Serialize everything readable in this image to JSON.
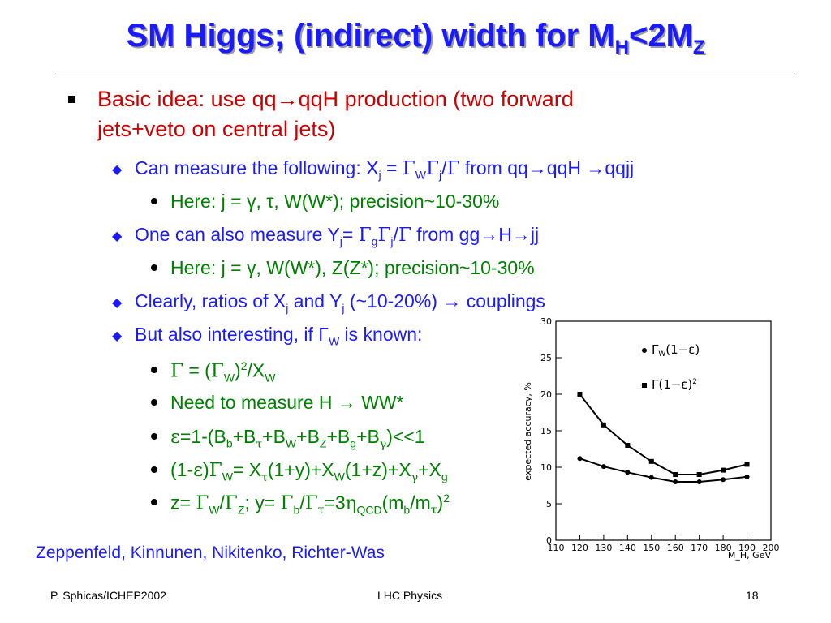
{
  "title": {
    "main": "SM Higgs; (indirect) width for M",
    "sub1": "H",
    "mid": "<2M",
    "sub2": "Z"
  },
  "bullet1": {
    "line1": "Basic idea: use qq→qqH production (two forward",
    "line2": "jets+veto on central jets)"
  },
  "items": [
    "Can measure the following: X",
    "Here: j = γ, τ, W(W*); precision~10-30%",
    "One can also measure Y",
    "Here: j = γ, W(W*), Z(Z*); precision~10-30%",
    "Clearly, ratios of X",
    "But also interesting, if Γ",
    "Need to measure H → WW*"
  ],
  "credit": "Zeppenfeld, Kinnunen, Nikitenko, Richter-Was",
  "footer": {
    "left": "P. Sphicas/ICHEP2002",
    "center": "LHC Physics",
    "right": "18"
  },
  "chart_data": {
    "type": "line",
    "ylabel": "expected accuracy, %",
    "xlabel": "M_H, GeV",
    "xlim": [
      110,
      200
    ],
    "ylim": [
      0,
      30
    ],
    "xticks": [
      110,
      120,
      130,
      140,
      150,
      160,
      170,
      180,
      190,
      200
    ],
    "yticks": [
      0,
      5,
      10,
      15,
      20,
      25,
      30
    ],
    "series": [
      {
        "name": "Γ_W(1−ε)",
        "marker": "circle",
        "x": [
          120,
          130,
          140,
          150,
          160,
          170,
          180,
          190
        ],
        "values": [
          11.2,
          10.1,
          9.3,
          8.6,
          8.0,
          8.0,
          8.3,
          8.7
        ]
      },
      {
        "name": "Γ(1−ε)²",
        "marker": "square",
        "x": [
          120,
          130,
          140,
          150,
          160,
          170,
          180,
          190
        ],
        "values": [
          20.0,
          15.8,
          13.0,
          10.8,
          9.0,
          9.0,
          9.6,
          10.4
        ]
      }
    ],
    "legend_position": "top-right",
    "grid": false
  }
}
